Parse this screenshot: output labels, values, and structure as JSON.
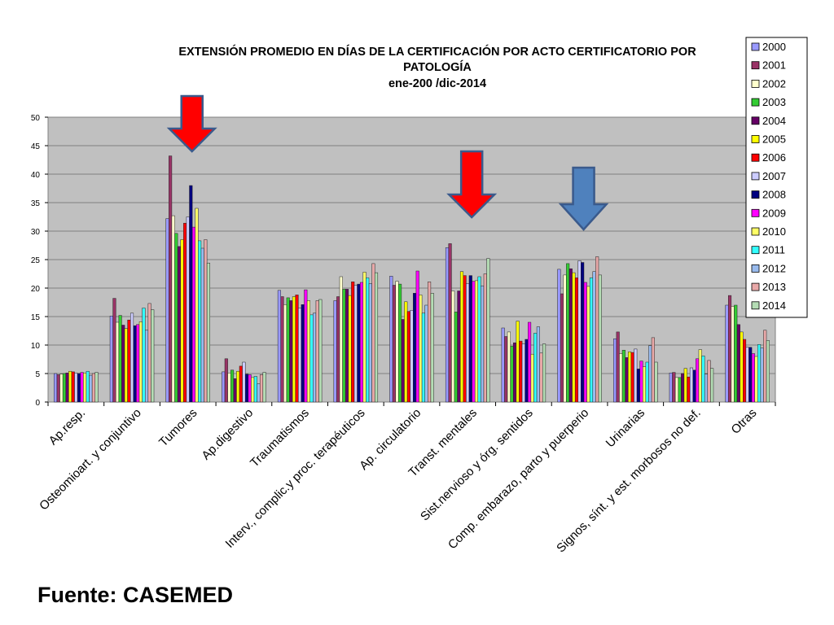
{
  "source": "Fuente: CASEMED",
  "chart_data": {
    "type": "bar",
    "title": "EXTENSIÓN PROMEDIO EN DÍAS DE LA CERTIFICACIÓN POR ACTO CERTIFICATORIO POR PATOLOGÍA",
    "title_line1": "EXTENSIÓN PROMEDIO EN DÍAS DE LA CERTIFICACIÓN POR ACTO CERTIFICATORIO POR",
    "title_line2": "PATOLOGÍA",
    "subtitle": "ene-200 /dic-2014",
    "xlabel": "",
    "ylabel": "",
    "ylim": [
      0,
      50
    ],
    "yticks": [
      0,
      5,
      10,
      15,
      20,
      25,
      30,
      35,
      40,
      45,
      50
    ],
    "grid": true,
    "legend_position": "top-right",
    "categories": [
      "Ap.resp.",
      "Osteomioart. y conjuntivo",
      "Tumores",
      "Ap.digestivo",
      "Traumatismos",
      "Interv., complic.y proc. terapéuticos",
      "Ap. circulatorio",
      "Transt. mentales",
      "Sist.nervioso y órg. sentidos",
      "Comp. embarazo, parto y puerperio",
      "Urinarias",
      "Signos, sínt. y est. morbosos no def.",
      "Otras"
    ],
    "series": [
      {
        "name": "2000",
        "color": "#9999ff",
        "values": [
          5.0,
          15.1,
          32.2,
          5.3,
          19.6,
          17.8,
          22.1,
          27.1,
          13.0,
          23.3,
          11.1,
          5.1,
          17.0
        ]
      },
      {
        "name": "2001",
        "color": "#993366",
        "values": [
          4.8,
          18.2,
          43.2,
          7.6,
          18.5,
          18.5,
          20.5,
          27.8,
          11.5,
          19.0,
          12.3,
          5.2,
          18.7
        ]
      },
      {
        "name": "2002",
        "color": "#ffffcc",
        "values": [
          4.9,
          14.0,
          32.7,
          5.1,
          17.1,
          22.0,
          21.2,
          19.5,
          12.3,
          22.3,
          8.5,
          4.3,
          16.8
        ]
      },
      {
        "name": "2003",
        "color": "#33cc33",
        "values": [
          5.0,
          15.2,
          29.6,
          5.6,
          18.3,
          19.8,
          20.7,
          15.8,
          9.8,
          24.3,
          9.1,
          4.3,
          17.0
        ]
      },
      {
        "name": "2004",
        "color": "#660066",
        "values": [
          5.1,
          13.5,
          27.3,
          4.1,
          17.8,
          19.8,
          14.5,
          19.5,
          10.4,
          23.4,
          7.8,
          5.0,
          13.6
        ]
      },
      {
        "name": "2005",
        "color": "#ffff00",
        "values": [
          5.4,
          12.9,
          28.5,
          5.4,
          18.5,
          18.7,
          17.6,
          22.9,
          14.2,
          22.7,
          8.8,
          5.9,
          12.3
        ]
      },
      {
        "name": "2006",
        "color": "#ff0000",
        "values": [
          5.3,
          14.4,
          31.4,
          6.3,
          18.8,
          21.1,
          15.9,
          22.2,
          10.7,
          21.8,
          8.7,
          4.4,
          11.0
        ]
      },
      {
        "name": "2007",
        "color": "#ccccff",
        "values": [
          5.1,
          15.6,
          32.5,
          7.0,
          16.5,
          20.5,
          16.1,
          20.8,
          10.2,
          24.8,
          9.3,
          6.0,
          9.6
        ]
      },
      {
        "name": "2008",
        "color": "#000080",
        "values": [
          5.0,
          13.4,
          38.0,
          4.9,
          17.1,
          20.7,
          19.1,
          22.2,
          11.0,
          24.5,
          5.8,
          5.6,
          9.6
        ]
      },
      {
        "name": "2009",
        "color": "#ff00ff",
        "values": [
          5.2,
          13.6,
          30.7,
          4.8,
          19.7,
          21.0,
          23.0,
          21.2,
          14.0,
          21.0,
          7.2,
          7.6,
          8.5
        ]
      },
      {
        "name": "2010",
        "color": "#ffff66",
        "values": [
          5.1,
          14.1,
          34.0,
          4.3,
          17.8,
          22.8,
          18.8,
          21.3,
          8.4,
          20.3,
          6.2,
          9.2,
          8.0
        ]
      },
      {
        "name": "2011",
        "color": "#33ffff",
        "values": [
          5.4,
          16.5,
          28.3,
          4.5,
          15.3,
          21.8,
          15.6,
          22.0,
          12.1,
          21.8,
          7.0,
          8.1,
          10.1
        ]
      },
      {
        "name": "2012",
        "color": "#99bbee",
        "values": [
          4.7,
          12.6,
          27.0,
          3.2,
          15.6,
          20.8,
          17.0,
          20.4,
          13.2,
          22.9,
          9.9,
          4.9,
          9.5
        ]
      },
      {
        "name": "2013",
        "color": "#e8a8a8",
        "values": [
          5.0,
          17.3,
          28.5,
          4.8,
          17.8,
          24.3,
          21.1,
          22.5,
          8.6,
          25.5,
          11.3,
          7.3,
          12.6
        ]
      },
      {
        "name": "2014",
        "color": "#b4dcb4",
        "values": [
          5.2,
          16.2,
          24.4,
          5.2,
          18.0,
          22.7,
          19.1,
          25.2,
          10.2,
          22.3,
          7.0,
          5.9,
          10.8
        ]
      }
    ],
    "annotations": [
      {
        "type": "arrow-down",
        "category": "Tumores",
        "color": "#ff0000",
        "name": "red-arrow"
      },
      {
        "type": "arrow-down",
        "category": "Transt. mentales",
        "color": "#ff0000",
        "name": "red-arrow"
      },
      {
        "type": "arrow-down",
        "category": "Comp. embarazo, parto y puerperio",
        "color": "#4f81bd",
        "name": "blue-arrow"
      }
    ]
  }
}
